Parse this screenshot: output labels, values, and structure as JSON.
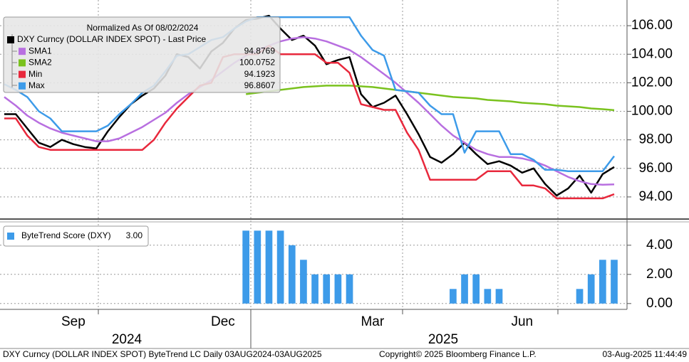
{
  "chart_data": [
    {
      "type": "line",
      "legend_title": "Normalized As Of 08/02/2024",
      "ylim": [
        92.45,
        107.8
      ],
      "yticks": [
        {
          "value": 94,
          "label": "94.00"
        },
        {
          "value": 96,
          "label": "96.00"
        },
        {
          "value": 98,
          "label": "98.00"
        },
        {
          "value": 100,
          "label": "100.00"
        },
        {
          "value": 102,
          "label": "102.00"
        },
        {
          "value": 104,
          "label": "104.00"
        },
        {
          "value": 106,
          "label": "106.00"
        }
      ],
      "grid": true,
      "series": [
        {
          "name": "DXY Curncy (DOLLAR INDEX SPOT) - Last Price",
          "color": "#000000",
          "values": [
            99.8,
            99.8,
            98.8,
            97.8,
            97.5,
            98.0,
            97.7,
            97.5,
            97.4,
            98.6,
            99.6,
            100.5,
            101.1,
            101.6,
            102.5,
            104.0,
            103.8,
            103.0,
            104.2,
            104.8,
            105.8,
            106.4,
            106.5,
            106.7,
            105.8,
            105.0,
            105.3,
            104.6,
            103.3,
            103.6,
            103.8,
            101.2,
            100.3,
            100.6,
            101.1,
            99.8,
            98.4,
            96.8,
            96.4,
            97.0,
            97.8,
            97.0,
            96.3,
            96.5,
            96.2,
            95.7,
            96.0,
            94.9,
            94.1,
            94.6,
            95.5,
            94.3,
            95.6,
            96.1
          ]
        },
        {
          "name": "SMA1",
          "color": "#b86fe0",
          "last_value": 94.8769,
          "values": [
            101.0,
            100.4,
            99.7,
            99.2,
            98.8,
            98.5,
            98.3,
            98.1,
            97.9,
            97.9,
            98.1,
            98.5,
            98.9,
            99.4,
            99.9,
            100.6,
            101.2,
            101.7,
            102.2,
            102.8,
            103.4,
            103.9,
            104.3,
            104.6,
            104.9,
            105.1,
            105.2,
            105.1,
            104.9,
            104.6,
            104.3,
            103.8,
            103.2,
            102.6,
            102.0,
            101.3,
            100.6,
            99.8,
            99.0,
            98.3,
            97.8,
            97.3,
            97.0,
            96.8,
            96.8,
            96.7,
            96.5,
            96.2,
            95.8,
            95.4,
            95.1,
            94.9,
            94.85,
            94.88
          ]
        },
        {
          "name": "SMA2",
          "color": "#7ac21e",
          "last_value": 100.0752,
          "values": [
            null,
            null,
            null,
            null,
            null,
            null,
            null,
            null,
            null,
            null,
            null,
            null,
            null,
            null,
            null,
            null,
            null,
            null,
            null,
            null,
            null,
            101.2,
            101.3,
            101.4,
            101.5,
            101.6,
            101.7,
            101.75,
            101.8,
            101.8,
            101.8,
            101.75,
            101.7,
            101.6,
            101.5,
            101.4,
            101.3,
            101.2,
            101.1,
            101.0,
            100.95,
            100.9,
            100.8,
            100.75,
            100.7,
            100.6,
            100.55,
            100.5,
            100.4,
            100.35,
            100.3,
            100.2,
            100.15,
            100.08
          ]
        },
        {
          "name": "Min",
          "color": "#e8283c",
          "last_value": 94.1923,
          "values": [
            99.5,
            99.5,
            98.3,
            97.5,
            97.3,
            97.3,
            97.3,
            97.3,
            97.3,
            97.3,
            97.3,
            97.3,
            97.3,
            98.0,
            99.2,
            100.2,
            101.0,
            101.8,
            102.0,
            103.8,
            104.0,
            104.0,
            104.0,
            104.6,
            104.0,
            104.0,
            104.0,
            104.0,
            103.4,
            103.4,
            102.7,
            100.5,
            100.3,
            100.1,
            100.1,
            98.5,
            97.3,
            95.2,
            95.2,
            95.2,
            95.2,
            95.2,
            95.8,
            95.8,
            95.8,
            94.8,
            94.8,
            94.6,
            93.9,
            93.9,
            93.9,
            93.9,
            93.9,
            94.19
          ]
        },
        {
          "name": "Max",
          "color": "#3d9be9",
          "last_value": 96.8607,
          "values": [
            101.9,
            101.5,
            101.0,
            100.0,
            99.5,
            98.6,
            98.6,
            98.6,
            98.6,
            99.0,
            99.8,
            100.5,
            101.3,
            101.8,
            102.8,
            103.9,
            104.0,
            104.5,
            105.0,
            105.2,
            105.8,
            106.3,
            106.6,
            106.6,
            106.6,
            106.6,
            106.6,
            106.6,
            106.6,
            106.6,
            106.6,
            105.3,
            104.3,
            103.9,
            101.5,
            101.4,
            101.3,
            100.4,
            99.8,
            99.8,
            97.1,
            98.6,
            98.6,
            98.6,
            97.0,
            97.0,
            96.6,
            95.9,
            95.9,
            95.8,
            95.8,
            95.8,
            95.8,
            96.86
          ]
        }
      ]
    },
    {
      "type": "bar",
      "categories": [
        null,
        null,
        null,
        null,
        null,
        null,
        "Sep",
        null,
        null,
        null,
        null,
        null,
        null,
        null,
        null,
        null,
        null,
        null,
        null,
        "Dec",
        null,
        null,
        null,
        null,
        null,
        null,
        null,
        null,
        null,
        null,
        null,
        null,
        "Mar",
        null,
        null,
        null,
        null,
        null,
        null,
        null,
        null,
        null,
        null,
        null,
        null,
        "Jun",
        null,
        null,
        null,
        null,
        null,
        null,
        null,
        null
      ],
      "x_group_labels": [
        "2024",
        "2025"
      ],
      "ylim": [
        -0.4,
        5.6
      ],
      "yticks": [
        {
          "value": 0,
          "label": "0.00"
        },
        {
          "value": 2,
          "label": "2.00"
        },
        {
          "value": 4,
          "label": "4.00"
        }
      ],
      "grid": true,
      "series": [
        {
          "name": "ByteTrend Score (DXY)",
          "color": "#3d9be9",
          "last_value": 3,
          "last_value_label": "3.00",
          "values": [
            0,
            0,
            0,
            0,
            0,
            0,
            0,
            0,
            0,
            0,
            0,
            0,
            0,
            0,
            0,
            0,
            0,
            0,
            0,
            0,
            0,
            5,
            5,
            5,
            5,
            4,
            3,
            2,
            2,
            2,
            2,
            0,
            0,
            0,
            0,
            0,
            0,
            0,
            0,
            1,
            2,
            2,
            1,
            1,
            0,
            0,
            0,
            0,
            0,
            0,
            1,
            2,
            3,
            3
          ]
        }
      ]
    }
  ],
  "footer": {
    "left": "DXY Curncy (DOLLAR INDEX SPOT) ByteTrend LC  Daily 03AUG2024-03AUG2025",
    "center": "Copyright© 2025 Bloomberg Finance L.P.",
    "right": "03-Aug-2025 11:44:49"
  }
}
